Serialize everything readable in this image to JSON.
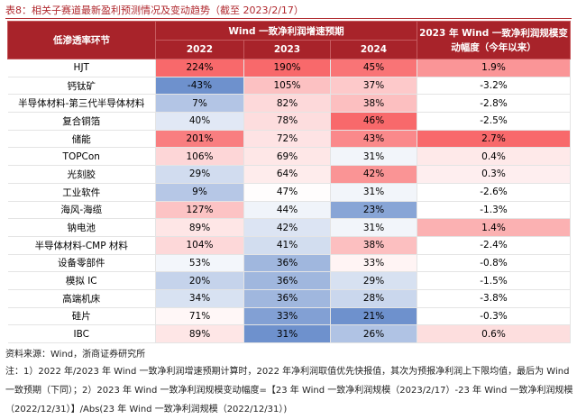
{
  "header": {
    "title": "表8：相关子赛道最新盈利预测情况及变动趋势（截至 2023/2/17）"
  },
  "table": {
    "corner": "低渗透率环节",
    "group": "Wind 一致净利润增速预期",
    "years": [
      "2022",
      "2023",
      "2024"
    ],
    "change": "2023 年 Wind 一致净利润规模变动幅度（今年以来）",
    "rows": [
      [
        "HJT",
        "224%",
        "190%",
        "45%",
        "1.9%"
      ],
      [
        "钙钛矿",
        "-43%",
        "105%",
        "37%",
        "-3.2%"
      ],
      [
        "半导体材料-第三代半导体材料",
        "7%",
        "82%",
        "38%",
        "-2.8%"
      ],
      [
        "复合铜箔",
        "40%",
        "78%",
        "46%",
        "-2.5%"
      ],
      [
        "储能",
        "201%",
        "72%",
        "43%",
        "2.7%"
      ],
      [
        "TOPCon",
        "106%",
        "69%",
        "31%",
        "0.4%"
      ],
      [
        "光刻胶",
        "29%",
        "64%",
        "42%",
        "0.3%"
      ],
      [
        "工业软件",
        "9%",
        "47%",
        "31%",
        "-2.6%"
      ],
      [
        "海风-海缆",
        "127%",
        "44%",
        "23%",
        "-1.3%"
      ],
      [
        "钠电池",
        "89%",
        "42%",
        "31%",
        "1.4%"
      ],
      [
        "半导体材料-CMP 材料",
        "104%",
        "41%",
        "38%",
        "-2.4%"
      ],
      [
        "设备零部件",
        "53%",
        "36%",
        "33%",
        "-0.8%"
      ],
      [
        "模拟 IC",
        "20%",
        "36%",
        "29%",
        "-1.5%"
      ],
      [
        "高端机床",
        "34%",
        "36%",
        "28%",
        "-3.8%"
      ],
      [
        "硅片",
        "71%",
        "33%",
        "21%",
        "-0.3%"
      ],
      [
        "IBC",
        "89%",
        "31%",
        "26%",
        "0.6%"
      ]
    ]
  },
  "footer": {
    "source": "资料来源：Wind，浙商证券研究所",
    "note": "注：1）2022 年/2023 年 Wind 一致净利润增速预期计算时，2022 年净利润取值优先快报值，其次为预报净利润上下限均值，最后为 Wind 一致预期（下同）；2）2023 年 Wind 一致净利润规模变动幅度=【23 年 Wind 一致净利润规模（2023/2/17）-23 年 Wind 一致净利润规模（2022/12/31）】/Abs(23 年 Wind 一致净利润规模（2022/12/31）)"
  }
}
